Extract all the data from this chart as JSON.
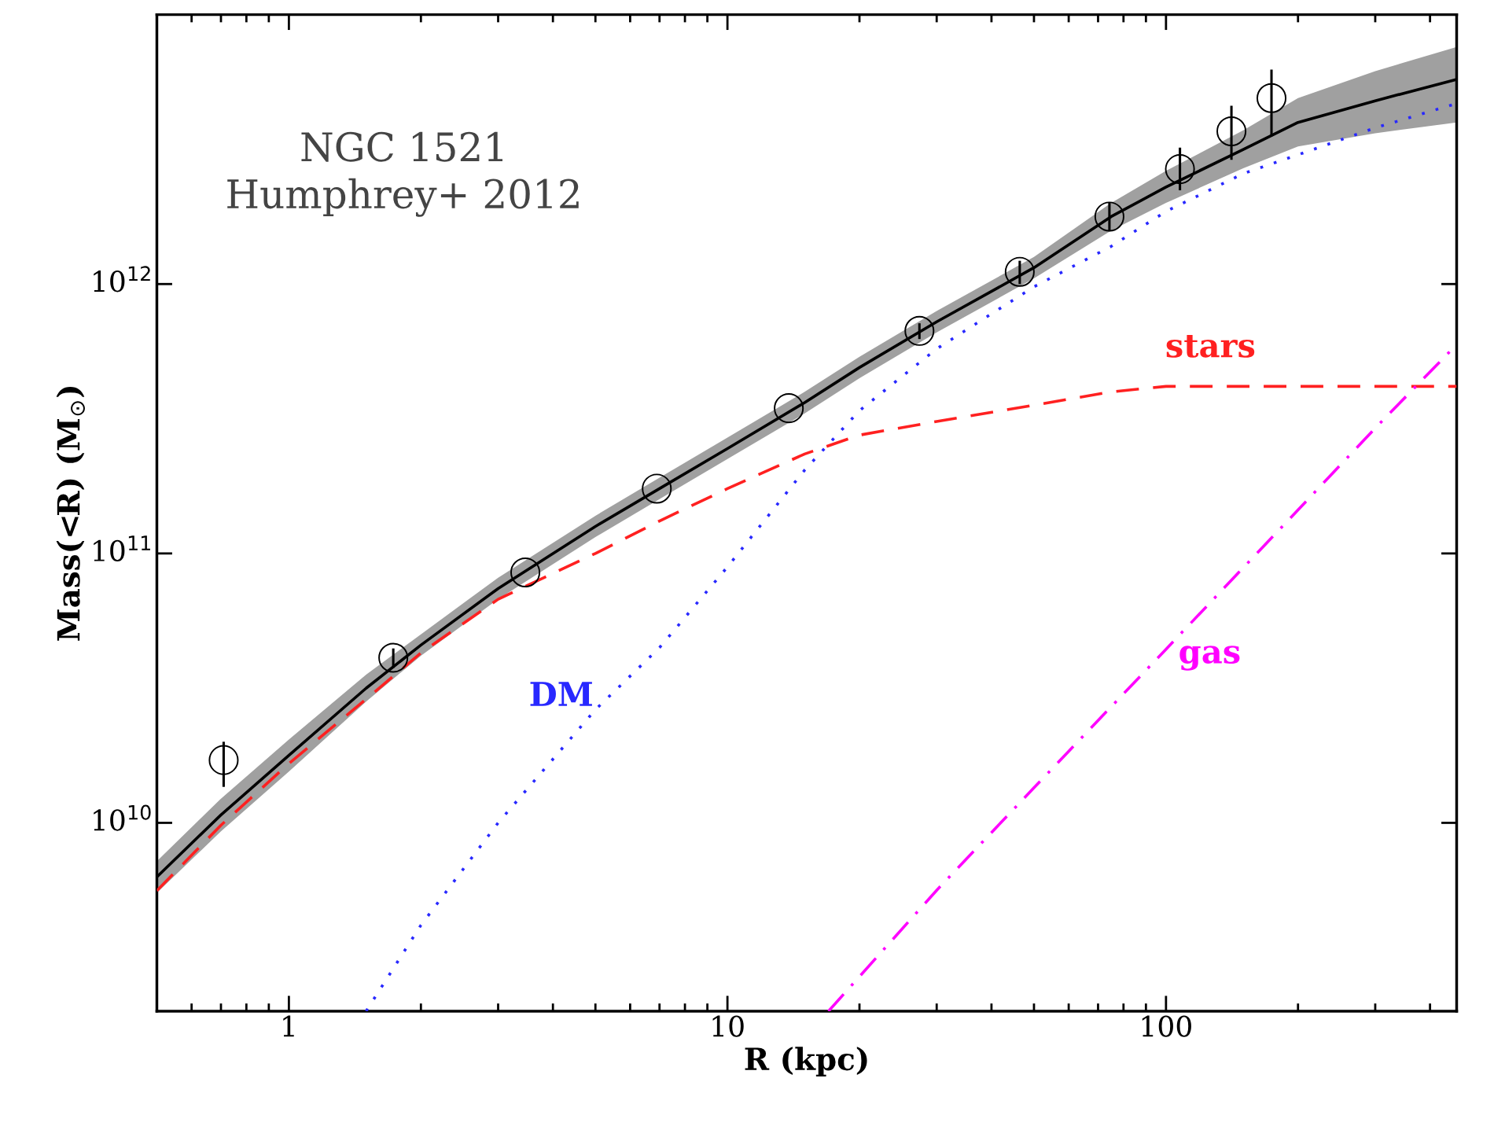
{
  "chart_data": {
    "type": "line",
    "xlabel": "R (kpc)",
    "ylabel": "Mass(<R) (M$_{⊙}$)",
    "log": "xy",
    "xlim": [
      0.5,
      460
    ],
    "ylim": [
      2000000000.0,
      10000000000000.0
    ],
    "xticks": [
      1,
      10,
      100
    ],
    "yticks": [
      {
        "value": 10000000000.0,
        "label": "10$^{10}$"
      },
      {
        "value": 100000000000.0,
        "label": "10$^{11}$"
      },
      {
        "value": 1000000000000.0,
        "label": "10$^{12}$"
      }
    ],
    "grid": false,
    "legend": false,
    "annotations": [
      "NGC 1521\nHumphrey+ 2012"
    ],
    "series": [
      {
        "type": "line",
        "color": "#000000",
        "line_style": "solid",
        "marker": "none",
        "x": [
          0.5,
          0.7,
          1,
          1.5,
          2,
          3,
          5,
          7,
          10,
          15,
          20,
          30,
          50,
          75,
          100,
          150,
          200,
          300,
          460
        ],
        "values": [
          6300000000.0,
          10700000000.0,
          17800000000.0,
          31600000000.0,
          45700000000.0,
          74100000000.0,
          126000000000.0,
          174000000000.0,
          245000000000.0,
          363000000000.0,
          490000000000.0,
          724000000000.0,
          1150000000000.0,
          1780000000000.0,
          2290000000000.0,
          3160000000000.0,
          3980000000000.0,
          4790000000000.0,
          5750000000000.0
        ],
        "lower": [
          5500000000.0,
          9300000000.0,
          15500000000.0,
          28200000000.0,
          41700000000.0,
          67600000000.0,
          115000000000.0,
          159000000000.0,
          224000000000.0,
          331000000000.0,
          447000000000.0,
          661000000000.0,
          1050000000000.0,
          1580000000000.0,
          2000000000000.0,
          2690000000000.0,
          3240000000000.0,
          3630000000000.0,
          3980000000000.0
        ],
        "upper": [
          7200000000.0,
          12300000000.0,
          20400000000.0,
          35500000000.0,
          50100000000.0,
          81300000000.0,
          138000000000.0,
          191000000000.0,
          269000000000.0,
          398000000000.0,
          537000000000.0,
          794000000000.0,
          1260000000000.0,
          2000000000000.0,
          2630000000000.0,
          3720000000000.0,
          4900000000000.0,
          6170000000000.0,
          7590000000000.0
        ]
      },
      {
        "type": "line",
        "name": "stars",
        "color": "#ff2020",
        "line_style": "dashed",
        "marker": "none",
        "x": [
          0.5,
          0.7,
          1,
          1.5,
          2,
          3,
          5,
          7,
          10,
          15,
          20,
          30,
          50,
          75,
          100,
          150,
          200,
          300,
          460
        ],
        "values": [
          5600000000.0,
          9800000000.0,
          16600000000.0,
          28800000000.0,
          42700000000.0,
          67600000000.0,
          100000000000.0,
          132000000000.0,
          174000000000.0,
          234000000000.0,
          275000000000.0,
          309000000000.0,
          355000000000.0,
          398000000000.0,
          417000000000.0,
          417000000000.0,
          417000000000.0,
          417000000000.0,
          417000000000.0
        ]
      },
      {
        "type": "line",
        "name": "DM",
        "color": "#2828ff",
        "line_style": "dotted",
        "marker": "none",
        "x": [
          1.5,
          2,
          3,
          5,
          7,
          10,
          15,
          20,
          30,
          50,
          75,
          100,
          150,
          200,
          300,
          460
        ],
        "values": [
          2000000000.0,
          4170000000.0,
          10000000000.0,
          26300000000.0,
          44700000000.0,
          89100000000.0,
          204000000000.0,
          339000000000.0,
          575000000000.0,
          977000000000.0,
          1380000000000.0,
          1860000000000.0,
          2570000000000.0,
          3020000000000.0,
          3800000000000.0,
          4680000000000.0
        ]
      },
      {
        "type": "line",
        "name": "gas",
        "color": "#ff00ff",
        "line_style": "dashdot",
        "marker": "none",
        "x": [
          17,
          30,
          50,
          100,
          200,
          300,
          460
        ],
        "values": [
          2000000000.0,
          5620000000.0,
          13500000000.0,
          44100000000.0,
          145000000000.0,
          292000000000.0,
          596000000000.0
        ]
      },
      {
        "type": "scatter",
        "color": "#000000",
        "marker": "circle",
        "x": [
          0.71,
          1.73,
          3.46,
          6.9,
          13.8,
          27.4,
          46.4,
          74.3,
          107.6,
          141,
          174
        ],
        "values": [
          17100000000.0,
          41000000000.0,
          85000000000.0,
          174000000000.0,
          346000000000.0,
          670000000000.0,
          1110000000000.0,
          1780000000000.0,
          2670000000000.0,
          3690000000000.0,
          4900000000000.0
        ],
        "errors": [
          [
            13600000000.0,
            20000000000.0
          ],
          3400000000.0,
          null,
          null,
          null,
          45000000000.0,
          110000000000.0,
          [
            1570000000000.0,
            2010000000000.0
          ],
          [
            2230000000000.0,
            3210000000000.0
          ],
          [
            2890000000000.0,
            4590000000000.0
          ],
          [
            3540000000000.0,
            6250000000000.0
          ]
        ]
      }
    ]
  }
}
